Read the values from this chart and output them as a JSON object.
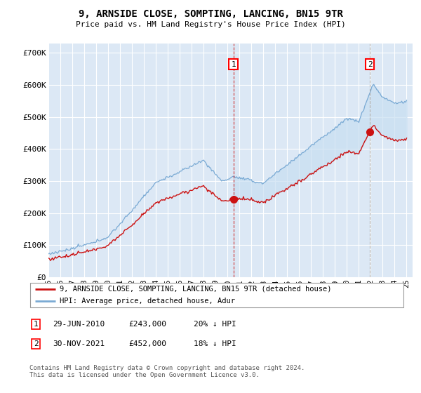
{
  "title": "9, ARNSIDE CLOSE, SOMPTING, LANCING, BN15 9TR",
  "subtitle": "Price paid vs. HM Land Registry's House Price Index (HPI)",
  "ylabel_ticks": [
    "£0",
    "£100K",
    "£200K",
    "£300K",
    "£400K",
    "£500K",
    "£600K",
    "£700K"
  ],
  "ytick_values": [
    0,
    100000,
    200000,
    300000,
    400000,
    500000,
    600000,
    700000
  ],
  "ylim": [
    0,
    730000
  ],
  "xlim_start": 1995.0,
  "xlim_end": 2025.5,
  "bg_color": "#dce8f5",
  "grid_color": "#ffffff",
  "hpi_color": "#7aaad4",
  "hpi_fill_color": "#c8dff2",
  "price_color": "#cc1111",
  "marker1_date": 2010.49,
  "marker2_date": 2021.92,
  "marker1_price": 243000,
  "marker2_price": 452000,
  "legend_line1": "9, ARNSIDE CLOSE, SOMPTING, LANCING, BN15 9TR (detached house)",
  "legend_line2": "HPI: Average price, detached house, Adur",
  "table_row1": [
    "1",
    "29-JUN-2010",
    "£243,000",
    "20% ↓ HPI"
  ],
  "table_row2": [
    "2",
    "30-NOV-2021",
    "£452,000",
    "18% ↓ HPI"
  ],
  "footnote": "Contains HM Land Registry data © Crown copyright and database right 2024.\nThis data is licensed under the Open Government Licence v3.0.",
  "xtick_years": [
    1995,
    1996,
    1997,
    1998,
    1999,
    2000,
    2001,
    2002,
    2003,
    2004,
    2005,
    2006,
    2007,
    2008,
    2009,
    2010,
    2011,
    2012,
    2013,
    2014,
    2015,
    2016,
    2017,
    2018,
    2019,
    2020,
    2021,
    2022,
    2023,
    2024,
    2025
  ],
  "xtick_labels": [
    "95",
    "96",
    "97",
    "98",
    "99",
    "00",
    "01",
    "02",
    "03",
    "04",
    "05",
    "06",
    "07",
    "08",
    "09",
    "10",
    "11",
    "12",
    "13",
    "14",
    "15",
    "16",
    "17",
    "18",
    "19",
    "20",
    "21",
    "22",
    "23",
    "24",
    "25"
  ]
}
